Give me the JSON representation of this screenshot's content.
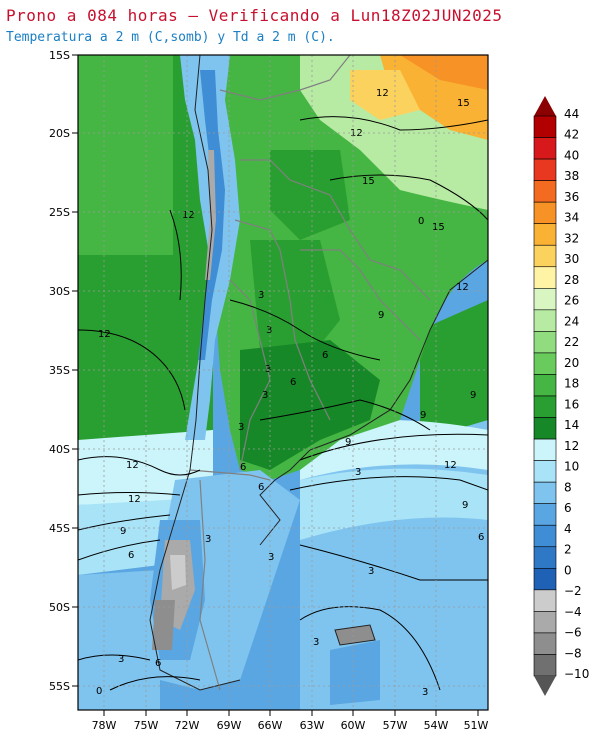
{
  "header": {
    "title": "Prono a 084 horas — Verificando a Lun18Z02JUN2025",
    "subtitle": "Temperatura a 2 m (C,somb) y Td a 2 m (C)."
  },
  "map": {
    "lat_labels": [
      "15S",
      "20S",
      "25S",
      "30S",
      "35S",
      "40S",
      "45S",
      "50S",
      "55S"
    ],
    "lon_labels": [
      "78W",
      "75W",
      "72W",
      "69W",
      "66W",
      "63W",
      "60W",
      "57W",
      "54W",
      "51W"
    ],
    "contour_labels": [
      "12",
      "15",
      "12",
      "15",
      "12",
      "15",
      "12",
      "9",
      "9",
      "6",
      "3",
      "12",
      "9",
      "12",
      "3",
      "6",
      "3",
      "9",
      "6",
      "3",
      "12",
      "9",
      "6",
      "12",
      "9",
      "6",
      "3",
      "6",
      "3",
      "3",
      "3",
      "3",
      "0",
      "3",
      "6",
      "0",
      "3",
      "3"
    ]
  },
  "colorbar": {
    "labels": [
      "44",
      "42",
      "40",
      "38",
      "36",
      "34",
      "32",
      "30",
      "28",
      "26",
      "24",
      "22",
      "20",
      "18",
      "16",
      "14",
      "12",
      "10",
      "8",
      "6",
      "4",
      "2",
      "0",
      "−2",
      "−4",
      "−6",
      "−8",
      "−10"
    ],
    "colors": [
      "#8b0000",
      "#b20000",
      "#d7191c",
      "#e8381f",
      "#f26b21",
      "#f79226",
      "#f9b233",
      "#fcd25f",
      "#fff3a5",
      "#d8f5c2",
      "#b7eba3",
      "#90dc7f",
      "#6acb5d",
      "#45b543",
      "#2a9f31",
      "#178827",
      "#ccf5fb",
      "#a8e3f7",
      "#7fc4ef",
      "#5aa6e2",
      "#3f8dd5",
      "#2f78c6",
      "#1f62b5",
      "#cccccc",
      "#aaaaaa",
      "#8e8e8e",
      "#707070",
      "#555555"
    ]
  }
}
